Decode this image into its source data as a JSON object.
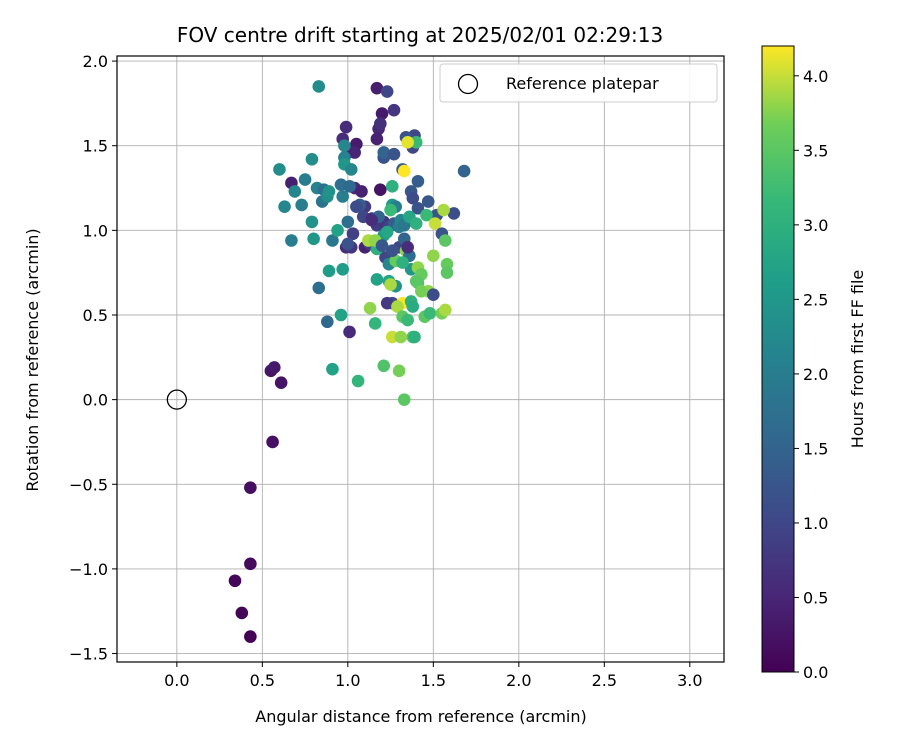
{
  "chart_data": {
    "type": "scatter",
    "title": "FOV centre drift starting at 2025/02/01 02:29:13",
    "xlabel": "Angular distance from reference (arcmin)",
    "ylabel": "Rotation from reference (arcmin)",
    "xlim": [
      -0.35,
      3.2
    ],
    "ylim": [
      -1.55,
      2.03
    ],
    "x_ticks": [
      0.0,
      0.5,
      1.0,
      1.5,
      2.0,
      2.5,
      3.0
    ],
    "x_tick_labels": [
      "0.0",
      "0.5",
      "1.0",
      "1.5",
      "2.0",
      "2.5",
      "3.0"
    ],
    "y_ticks": [
      -1.5,
      -1.0,
      -0.5,
      0.0,
      0.5,
      1.0,
      1.5,
      2.0
    ],
    "y_tick_labels": [
      "−1.5",
      "−1.0",
      "−0.5",
      "0.0",
      "0.5",
      "1.0",
      "1.5",
      "2.0"
    ],
    "grid": true,
    "legend": {
      "placement": "upper-right",
      "entries": [
        "Reference platepar"
      ]
    },
    "reference_point": {
      "x": 0.0,
      "y": 0.0,
      "marker": "hollow-circle"
    },
    "colorbar": {
      "label": "Hours from first FF file",
      "colormap": "viridis",
      "range": [
        0.0,
        4.2
      ],
      "ticks": [
        0.0,
        0.5,
        1.0,
        1.5,
        2.0,
        2.5,
        3.0,
        3.5,
        4.0
      ],
      "tick_labels": [
        "0.0",
        "0.5",
        "1.0",
        "1.5",
        "2.0",
        "2.5",
        "3.0",
        "3.5",
        "4.0"
      ]
    },
    "points": [
      [
        0.43,
        -1.4,
        0.02
      ],
      [
        0.38,
        -1.26,
        0.05
      ],
      [
        0.34,
        -1.07,
        0.08
      ],
      [
        0.43,
        -0.97,
        0.12
      ],
      [
        0.43,
        -0.52,
        0.18
      ],
      [
        0.56,
        -0.25,
        0.22
      ],
      [
        0.55,
        0.17,
        0.28
      ],
      [
        0.57,
        0.19,
        0.32
      ],
      [
        0.61,
        0.1,
        0.26
      ],
      [
        1.01,
        0.4,
        0.55
      ],
      [
        1.17,
        1.84,
        0.4
      ],
      [
        1.23,
        1.82,
        1.0
      ],
      [
        1.2,
        1.69,
        0.35
      ],
      [
        1.27,
        1.71,
        0.75
      ],
      [
        0.99,
        1.61,
        0.6
      ],
      [
        1.18,
        1.6,
        0.5
      ],
      [
        1.19,
        1.63,
        0.65
      ],
      [
        1.17,
        1.54,
        0.45
      ],
      [
        1.05,
        1.51,
        0.35
      ],
      [
        0.97,
        1.54,
        0.6
      ],
      [
        1.0,
        1.46,
        0.4
      ],
      [
        1.04,
        1.46,
        0.5
      ],
      [
        1.39,
        1.56,
        1.0
      ],
      [
        1.34,
        1.55,
        1.2
      ],
      [
        1.21,
        1.43,
        1.2
      ],
      [
        1.21,
        1.46,
        1.5
      ],
      [
        1.27,
        1.45,
        1.2
      ],
      [
        1.38,
        1.49,
        1.0
      ],
      [
        1.4,
        1.52,
        3.2
      ],
      [
        1.68,
        1.35,
        1.5
      ],
      [
        1.32,
        1.36,
        1.4
      ],
      [
        1.33,
        1.35,
        4.2
      ],
      [
        1.35,
        1.52,
        4.1
      ],
      [
        1.41,
        1.29,
        1.4
      ],
      [
        1.19,
        1.24,
        0.25
      ],
      [
        1.04,
        1.25,
        0.55
      ],
      [
        1.08,
        1.23,
        0.45
      ],
      [
        1.1,
        1.14,
        0.8
      ],
      [
        1.37,
        1.23,
        1.3
      ],
      [
        1.38,
        1.19,
        1.1
      ],
      [
        1.41,
        1.13,
        1.2
      ],
      [
        1.47,
        1.17,
        1.3
      ],
      [
        1.52,
        1.09,
        1.2
      ],
      [
        1.62,
        1.1,
        1.1
      ],
      [
        1.26,
        1.26,
        3.0
      ],
      [
        1.26,
        1.15,
        2.6
      ],
      [
        1.28,
        1.14,
        2.0
      ],
      [
        1.25,
        1.12,
        3.2
      ],
      [
        0.83,
        1.85,
        2.3
      ],
      [
        0.98,
        1.5,
        2.2
      ],
      [
        0.98,
        1.43,
        2.1
      ],
      [
        0.98,
        1.39,
        2.5
      ],
      [
        0.79,
        1.42,
        2.3
      ],
      [
        0.6,
        1.36,
        2.3
      ],
      [
        0.67,
        1.28,
        0.4
      ],
      [
        0.75,
        1.3,
        2.0
      ],
      [
        0.69,
        1.23,
        2.2
      ],
      [
        0.63,
        1.14,
        2.2
      ],
      [
        0.73,
        1.15,
        2.0
      ],
      [
        0.82,
        1.25,
        2.1
      ],
      [
        0.85,
        1.17,
        1.8
      ],
      [
        0.86,
        1.24,
        1.7
      ],
      [
        0.88,
        1.2,
        2.3
      ],
      [
        0.89,
        1.23,
        2.4
      ],
      [
        0.96,
        1.27,
        1.7
      ],
      [
        0.97,
        1.2,
        2.0
      ],
      [
        1.01,
        1.26,
        1.6
      ],
      [
        1.02,
        1.36,
        2.2
      ],
      [
        1.0,
        1.05,
        1.7
      ],
      [
        0.79,
        1.05,
        2.4
      ],
      [
        0.67,
        0.94,
        2.0
      ],
      [
        0.8,
        0.95,
        2.5
      ],
      [
        0.91,
        0.94,
        1.9
      ],
      [
        0.94,
        1.0,
        2.7
      ],
      [
        0.99,
        0.9,
        0.6
      ],
      [
        1.02,
        0.9,
        0.75
      ],
      [
        1.1,
        0.9,
        0.45
      ],
      [
        1.13,
        0.92,
        0.8
      ],
      [
        1.09,
        1.08,
        1.0
      ],
      [
        1.14,
        1.07,
        0.7
      ],
      [
        1.17,
        1.03,
        0.85
      ],
      [
        1.21,
        1.05,
        0.7
      ],
      [
        1.24,
        1.02,
        0.9
      ],
      [
        1.27,
        1.04,
        1.4
      ],
      [
        1.3,
        1.02,
        2.0
      ],
      [
        1.31,
        1.06,
        2.2
      ],
      [
        1.33,
        1.03,
        1.9
      ],
      [
        1.36,
        1.08,
        2.8
      ],
      [
        1.4,
        1.04,
        3.0
      ],
      [
        1.46,
        1.09,
        3.2
      ],
      [
        1.51,
        1.04,
        4.0
      ],
      [
        1.55,
        0.98,
        1.2
      ],
      [
        1.56,
        1.12,
        3.9
      ],
      [
        1.57,
        0.94,
        3.5
      ],
      [
        1.21,
        0.97,
        2.6
      ],
      [
        1.23,
        0.99,
        2.8
      ],
      [
        1.3,
        0.9,
        1.0
      ],
      [
        1.34,
        0.88,
        3.8
      ],
      [
        1.36,
        0.85,
        1.7
      ],
      [
        1.37,
        0.77,
        2.5
      ],
      [
        1.41,
        0.78,
        3.8
      ],
      [
        1.43,
        0.74,
        3.6
      ],
      [
        1.5,
        0.85,
        3.8
      ],
      [
        1.58,
        0.8,
        3.6
      ],
      [
        1.58,
        0.75,
        3.5
      ],
      [
        1.22,
        0.84,
        1.0
      ],
      [
        1.24,
        0.8,
        2.2
      ],
      [
        1.24,
        0.7,
        2.8
      ],
      [
        1.28,
        0.67,
        2.4
      ],
      [
        1.26,
        0.57,
        1.1
      ],
      [
        1.23,
        0.57,
        0.8
      ],
      [
        1.25,
        0.68,
        3.9
      ],
      [
        1.32,
        0.57,
        4.2
      ],
      [
        1.29,
        0.55,
        3.9
      ],
      [
        1.32,
        0.49,
        3.5
      ],
      [
        1.35,
        0.47,
        3.2
      ],
      [
        1.37,
        0.58,
        3.0
      ],
      [
        1.38,
        0.55,
        2.9
      ],
      [
        1.45,
        0.49,
        3.5
      ],
      [
        1.47,
        0.64,
        3.8
      ],
      [
        1.48,
        0.51,
        3.2
      ],
      [
        1.5,
        0.62,
        1.1
      ],
      [
        1.55,
        0.51,
        3.7
      ],
      [
        1.57,
        0.53,
        3.9
      ],
      [
        1.38,
        0.37,
        3.4
      ],
      [
        1.39,
        0.37,
        3.0
      ],
      [
        1.26,
        0.37,
        4.0
      ],
      [
        1.31,
        0.37,
        3.8
      ],
      [
        1.16,
        0.45,
        3.1
      ],
      [
        1.13,
        0.54,
        3.8
      ],
      [
        1.21,
        0.2,
        3.4
      ],
      [
        1.3,
        0.17,
        3.7
      ],
      [
        1.33,
        0.0,
        3.5
      ],
      [
        1.06,
        0.11,
        3.1
      ],
      [
        0.91,
        0.18,
        2.7
      ],
      [
        0.96,
        0.5,
        2.7
      ],
      [
        0.88,
        0.46,
        1.6
      ],
      [
        0.83,
        0.66,
        1.7
      ],
      [
        0.89,
        0.76,
        2.6
      ],
      [
        0.97,
        0.77,
        2.6
      ],
      [
        1.17,
        0.71,
        2.7
      ],
      [
        1.17,
        0.89,
        3.0
      ],
      [
        1.12,
        0.94,
        3.9
      ],
      [
        1.16,
        0.94,
        3.8
      ],
      [
        1.28,
        0.82,
        3.6
      ],
      [
        1.32,
        0.81,
        3.0
      ],
      [
        1.41,
        0.69,
        3.4
      ],
      [
        1.4,
        0.7,
        3.5
      ],
      [
        1.43,
        0.64,
        3.7
      ],
      [
        1.2,
        0.91,
        1.3
      ],
      [
        1.26,
        0.88,
        1.2
      ],
      [
        1.33,
        0.95,
        1.5
      ],
      [
        1.35,
        0.9,
        0.6
      ],
      [
        1.18,
        1.08,
        1.5
      ],
      [
        1.14,
        1.06,
        0.6
      ],
      [
        1.07,
        1.15,
        1.4
      ],
      [
        1.05,
        1.14,
        1.1
      ],
      [
        1.03,
        0.98,
        0.9
      ],
      [
        1.0,
        0.92,
        1.2
      ]
    ]
  }
}
